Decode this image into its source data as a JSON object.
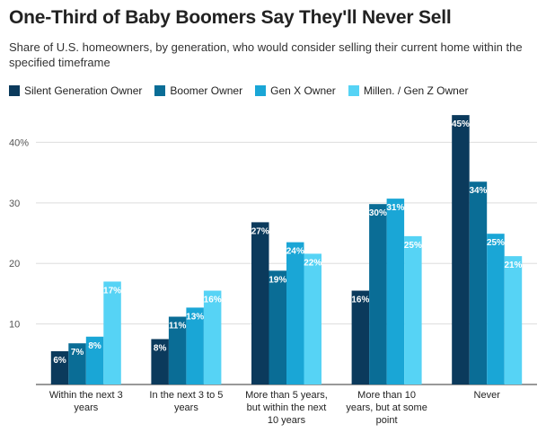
{
  "chart_data": {
    "type": "bar",
    "title": "One-Third of Baby Boomers Say They'll Never Sell",
    "subtitle": "Share of U.S. homeowners, by generation, who would consider selling their current home within the specified timeframe",
    "categories": [
      [
        "Within the next 3",
        "years"
      ],
      [
        "In the next 3 to 5",
        "years"
      ],
      [
        "More than 5 years,",
        "but within the next",
        "10 years"
      ],
      [
        "More than 10",
        "years, but at some",
        "point"
      ],
      [
        "Never"
      ]
    ],
    "series": [
      {
        "name": "Silent Generation Owner",
        "color": "#0b3a5c",
        "values": [
          5.5,
          7.5,
          26.8,
          15.5,
          44.5
        ],
        "labels": [
          "6%",
          "8%",
          "27%",
          "16%",
          "45%"
        ]
      },
      {
        "name": "Boomer Owner",
        "color": "#0a6d96",
        "values": [
          6.8,
          11.2,
          18.8,
          29.8,
          33.5
        ],
        "labels": [
          "7%",
          "11%",
          "19%",
          "30%",
          "34%"
        ]
      },
      {
        "name": "Gen X Owner",
        "color": "#1aa6d6",
        "values": [
          7.9,
          12.7,
          23.5,
          30.7,
          24.9
        ],
        "labels": [
          "8%",
          "13%",
          "24%",
          "31%",
          "25%"
        ]
      },
      {
        "name": "Millen. / Gen Z Owner",
        "color": "#56d3f5",
        "values": [
          17.0,
          15.5,
          21.6,
          24.5,
          21.2
        ],
        "labels": [
          "17%",
          "16%",
          "22%",
          "25%",
          "21%"
        ]
      }
    ],
    "ylim": [
      0,
      46
    ],
    "yticks": [
      {
        "value": 10,
        "label": "10"
      },
      {
        "value": 20,
        "label": "20"
      },
      {
        "value": 30,
        "label": "30"
      },
      {
        "value": 40,
        "label": "40%"
      }
    ],
    "legend_position": "top-left",
    "grid": true
  }
}
